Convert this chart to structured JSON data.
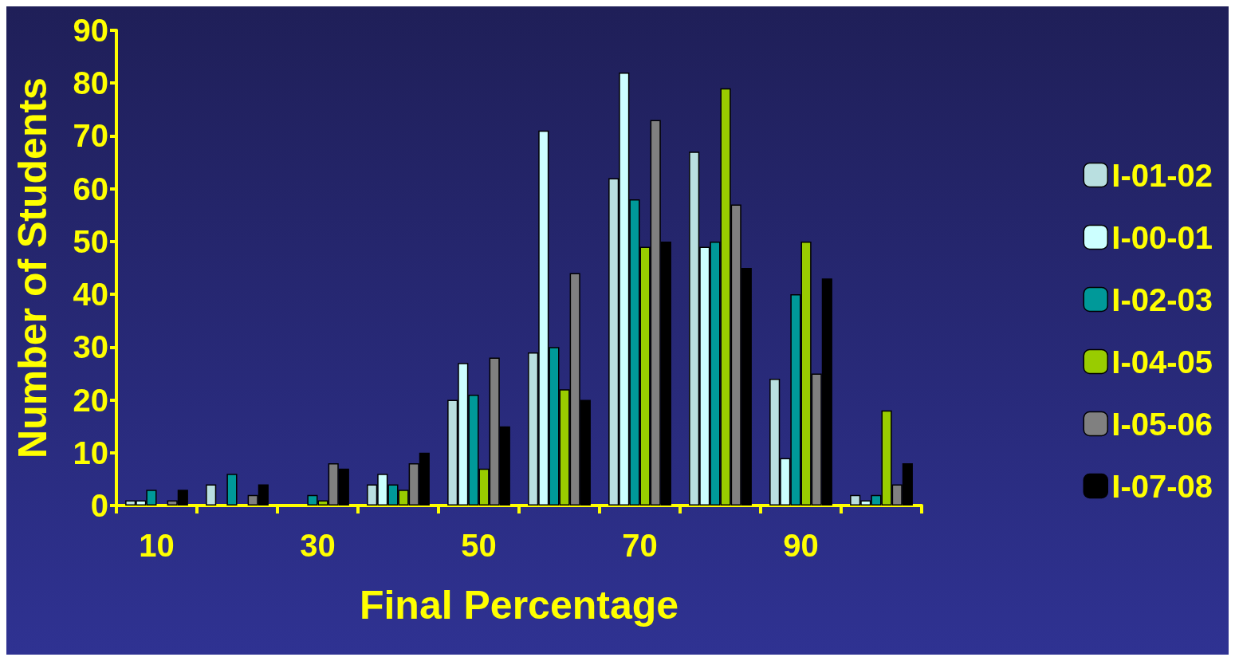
{
  "chart_data": {
    "type": "bar",
    "xlabel": "Final Percentage",
    "ylabel": "Number of Students",
    "categories": [
      "10",
      null,
      "30",
      null,
      "50",
      null,
      "70",
      null,
      "90",
      null
    ],
    "series": [
      {
        "name": "I-01-02",
        "color": "#b9dfe0",
        "values": [
          1,
          4,
          0,
          4,
          20,
          29,
          62,
          67,
          24,
          2
        ]
      },
      {
        "name": "I-00-01",
        "color": "#ccffff",
        "values": [
          1,
          0,
          0,
          6,
          27,
          71,
          82,
          49,
          9,
          1
        ]
      },
      {
        "name": "I-02-03",
        "color": "#009999",
        "values": [
          3,
          6,
          2,
          4,
          21,
          30,
          58,
          50,
          40,
          2
        ]
      },
      {
        "name": "I-04-05",
        "color": "#99cc00",
        "values": [
          0,
          0,
          1,
          3,
          7,
          22,
          49,
          79,
          50,
          18
        ]
      },
      {
        "name": "I-05-06",
        "color": "#808080",
        "values": [
          1,
          2,
          8,
          8,
          28,
          44,
          73,
          57,
          25,
          4
        ]
      },
      {
        "name": "I-07-08",
        "color": "#000000",
        "values": [
          3,
          4,
          7,
          10,
          15,
          20,
          50,
          45,
          43,
          8
        ]
      }
    ],
    "ylim": [
      0,
      90
    ],
    "yticks": [
      0,
      10,
      20,
      30,
      40,
      50,
      60,
      70,
      80,
      90
    ],
    "grid": false,
    "legend": "right"
  }
}
